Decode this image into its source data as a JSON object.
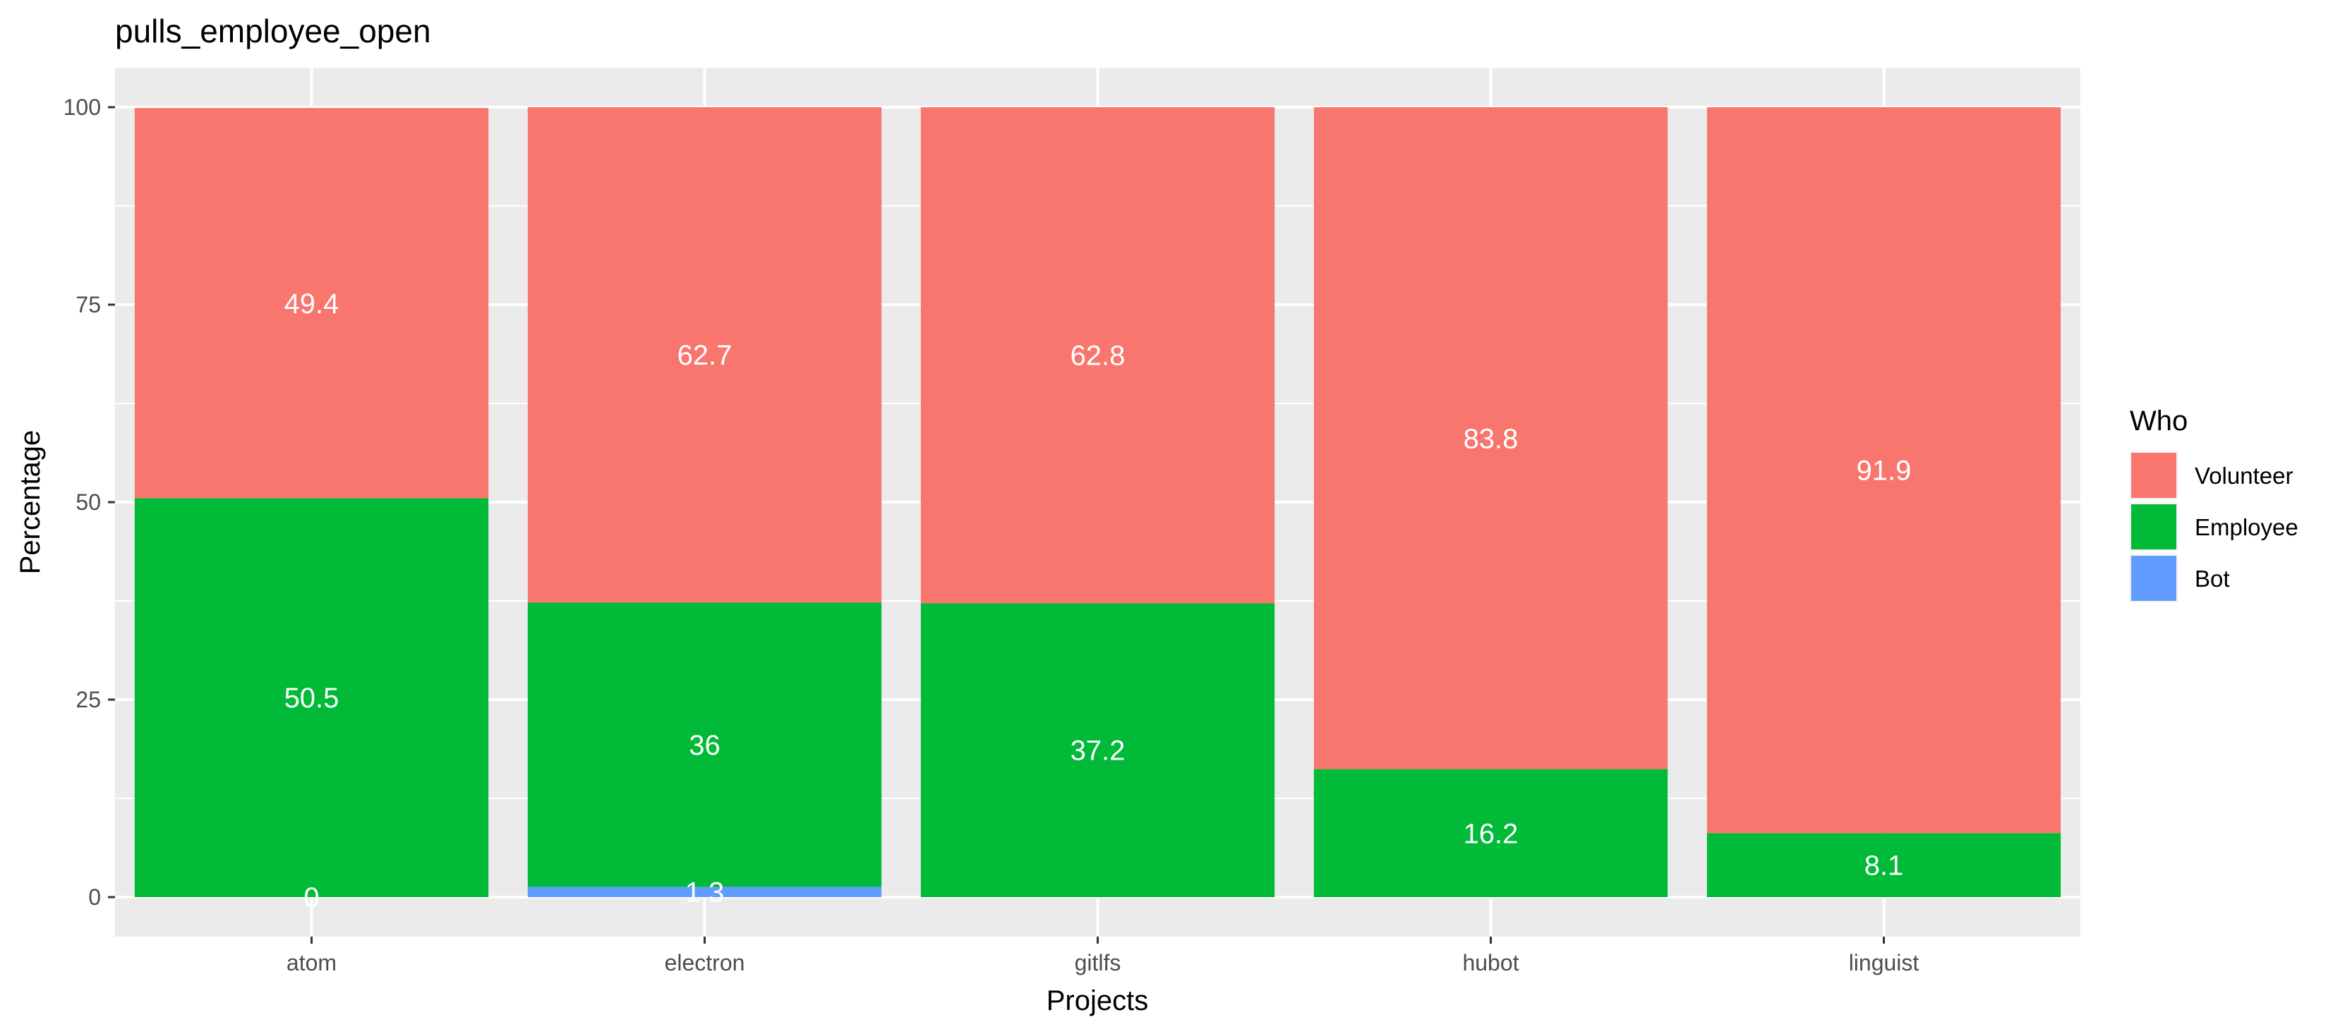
{
  "chart_data": {
    "type": "bar",
    "stacked": true,
    "title": "pulls_employee_open",
    "xlabel": "Projects",
    "ylabel": "Percentage",
    "ylim": [
      -5,
      105
    ],
    "yticks": [
      0,
      25,
      50,
      75,
      100
    ],
    "categories": [
      "atom",
      "electron",
      "gitlfs",
      "hubot",
      "linguist"
    ],
    "series": [
      {
        "name": "Bot",
        "color": "#619CFF",
        "values": [
          0,
          1.3,
          0,
          0,
          0
        ],
        "labels": [
          "0",
          "1.3",
          "",
          "",
          ""
        ]
      },
      {
        "name": "Employee",
        "color": "#00BA38",
        "values": [
          50.5,
          36,
          37.2,
          16.2,
          8.1
        ],
        "labels": [
          "50.5",
          "36",
          "37.2",
          "16.2",
          "8.1"
        ]
      },
      {
        "name": "Volunteer",
        "color": "#F8766D",
        "values": [
          49.4,
          62.7,
          62.8,
          83.8,
          91.9
        ],
        "labels": [
          "49.4",
          "62.7",
          "62.8",
          "83.8",
          "91.9"
        ]
      }
    ],
    "legend": {
      "title": "Who",
      "position": "right",
      "order": [
        "Volunteer",
        "Employee",
        "Bot"
      ]
    },
    "grid": true,
    "panel_color": "#EBEBEB"
  }
}
